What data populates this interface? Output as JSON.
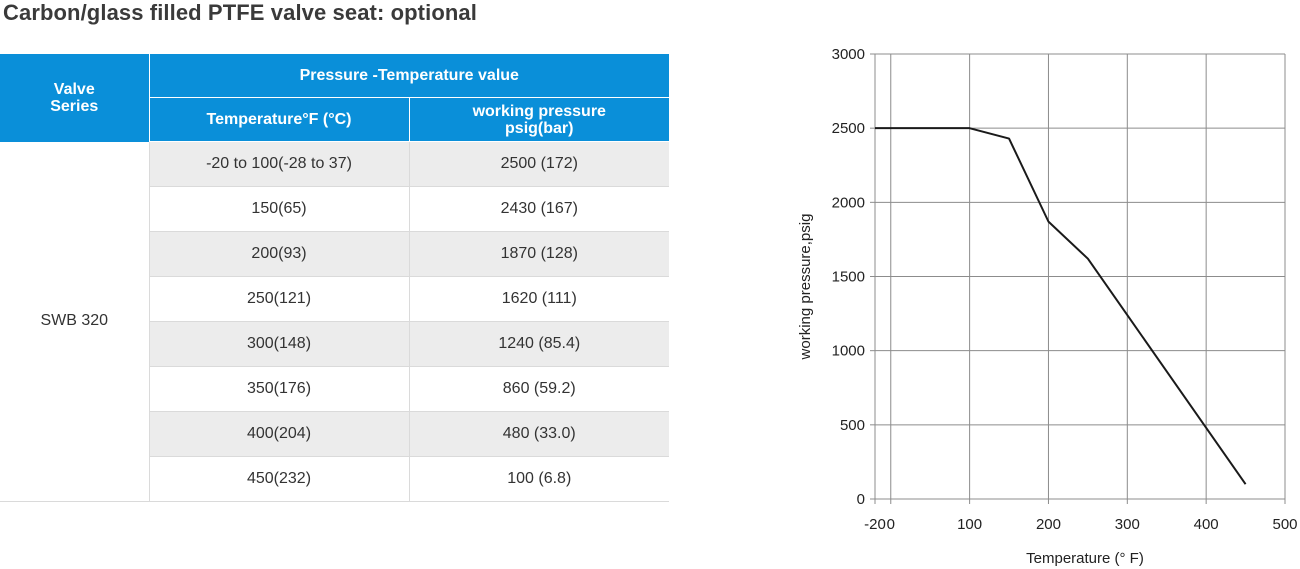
{
  "page": {
    "title": "Carbon/glass filled PTFE valve seat: optional"
  },
  "table": {
    "header_series": "Valve Series",
    "header_group": "Pressure -Temperature value",
    "header_temp": "Temperature°F (°C)",
    "header_pressure": "working pressure psig(bar)",
    "series": "SWB 320",
    "rows": [
      {
        "temp": "-20  to 100(-28  to 37)",
        "pressure": "2500 (172)"
      },
      {
        "temp": "150(65)",
        "pressure": "2430 (167)"
      },
      {
        "temp": "200(93)",
        "pressure": "1870 (128)"
      },
      {
        "temp": "250(121)",
        "pressure": "1620 (111)"
      },
      {
        "temp": "300(148)",
        "pressure": "1240 (85.4)"
      },
      {
        "temp": "350(176)",
        "pressure": "860 (59.2)"
      },
      {
        "temp": "400(204)",
        "pressure": "480 (33.0)"
      },
      {
        "temp": "450(232)",
        "pressure": "100 (6.8)"
      }
    ],
    "colors": {
      "header_bg": "#0a8fd9",
      "row_shade": "#ececec"
    }
  },
  "chart_data": {
    "type": "line",
    "xlabel": "Temperature (° F)",
    "ylabel": "working pressure,psig",
    "xlim": [
      -20,
      500
    ],
    "ylim": [
      0,
      3000
    ],
    "x_ticks": [
      -20,
      0,
      100,
      200,
      300,
      400,
      500
    ],
    "y_ticks": [
      0,
      500,
      1000,
      1500,
      2000,
      2500,
      3000
    ],
    "grid": true,
    "series": [
      {
        "x": [
          -20,
          100,
          150,
          200,
          250,
          300,
          350,
          400,
          450
        ],
        "y": [
          2500,
          2500,
          2430,
          1870,
          1620,
          1240,
          860,
          480,
          100
        ]
      }
    ],
    "line_color": "#1a1a1a",
    "grid_color": "#8c8c8c"
  }
}
